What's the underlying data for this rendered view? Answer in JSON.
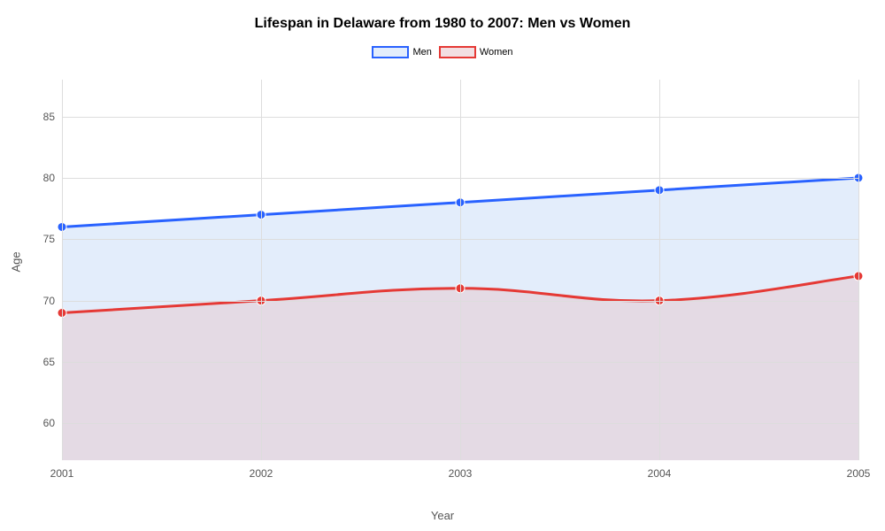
{
  "chart": {
    "type": "area-line",
    "title": "Lifespan in Delaware from 1980 to 2007: Men vs Women",
    "title_fontsize": 16,
    "title_fontweight": "bold",
    "background_color": "#ffffff",
    "grid_color": "#dddddd",
    "text_color": "#555555",
    "xlabel": "Year",
    "ylabel": "Age",
    "label_fontsize": 13,
    "tick_fontsize": 12,
    "xlim": [
      2001,
      2005
    ],
    "ylim": [
      57,
      88
    ],
    "yticks": [
      60,
      65,
      70,
      75,
      80,
      85
    ],
    "xticks": [
      2001,
      2002,
      2003,
      2004,
      2005
    ],
    "legend": {
      "position": "top-center",
      "items": [
        {
          "label": "Men",
          "color": "#2962ff",
          "fill": "#e3edfb"
        },
        {
          "label": "Women",
          "color": "#e53935",
          "fill": "#f2dfe2"
        }
      ]
    },
    "series": [
      {
        "name": "Men",
        "x": [
          2001,
          2002,
          2003,
          2004,
          2005
        ],
        "y": [
          76,
          77,
          78,
          79,
          80
        ],
        "line_color": "#2962ff",
        "line_width": 3,
        "marker": "circle",
        "marker_size": 5,
        "marker_color": "#2962ff",
        "fill_color": "#e3edfb",
        "fill_opacity": 1.0,
        "fill_to": 0
      },
      {
        "name": "Women",
        "x": [
          2001,
          2002,
          2003,
          2004,
          2005
        ],
        "y": [
          69,
          70,
          71,
          70,
          72
        ],
        "line_color": "#e53935",
        "line_width": 3,
        "marker": "circle",
        "marker_size": 5,
        "marker_color": "#e53935",
        "fill_color": "#e4d6df",
        "fill_opacity": 0.85,
        "fill_to": 0
      }
    ]
  }
}
